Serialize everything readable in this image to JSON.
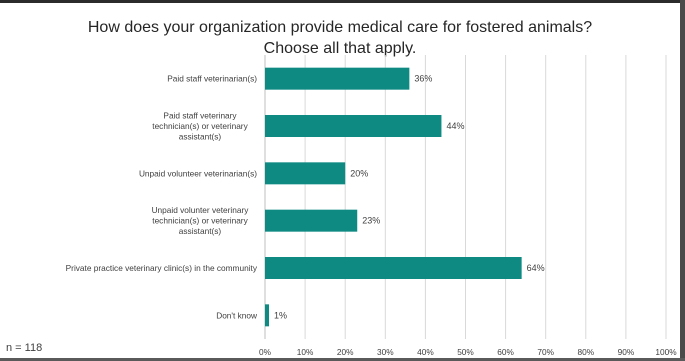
{
  "chart_data": {
    "type": "bar",
    "orientation": "horizontal",
    "title": "How does your organization provide medical care for fostered animals? Choose all that apply.",
    "categories": [
      "Paid staff veterinarian(s)",
      "Paid staff veterinary technician(s) or veterinary assistant(s)",
      "Unpaid volunteer veterinarian(s)",
      "Unpaid volunter veterinary technician(s) or veterinary assistant(s)",
      "Private practice veterinary clinic(s) in the community",
      "Don't know"
    ],
    "values": [
      36,
      44,
      20,
      23,
      64,
      1
    ],
    "value_labels": [
      "36%",
      "44%",
      "20%",
      "23%",
      "64%",
      "1%"
    ],
    "xlim": [
      0,
      100
    ],
    "xticks": [
      "0%",
      "10%",
      "20%",
      "30%",
      "40%",
      "50%",
      "60%",
      "70%",
      "80%",
      "90%",
      "100%"
    ],
    "grid": "vertical",
    "bar_color": "#0e8a82",
    "annotation": "n = 118"
  }
}
